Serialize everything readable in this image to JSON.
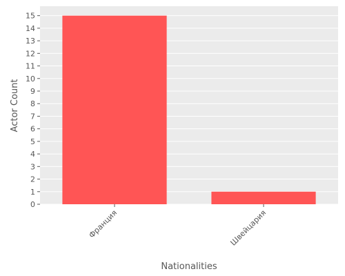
{
  "chart_data": {
    "type": "bar",
    "title": "",
    "xlabel": "Nationalities",
    "ylabel": "Actor Count",
    "categories": [
      "Франция",
      "Швейцария"
    ],
    "values": [
      15,
      1
    ],
    "ylim": [
      0,
      15.75
    ],
    "yticks": [
      0,
      1,
      2,
      3,
      4,
      5,
      6,
      7,
      8,
      9,
      10,
      11,
      12,
      13,
      14,
      15
    ],
    "grid": true,
    "legend": "none",
    "colors": {
      "bar": "#ff5555",
      "plot_background": "#ebebeb",
      "grid": "#ffffff",
      "text": "#555555"
    }
  }
}
